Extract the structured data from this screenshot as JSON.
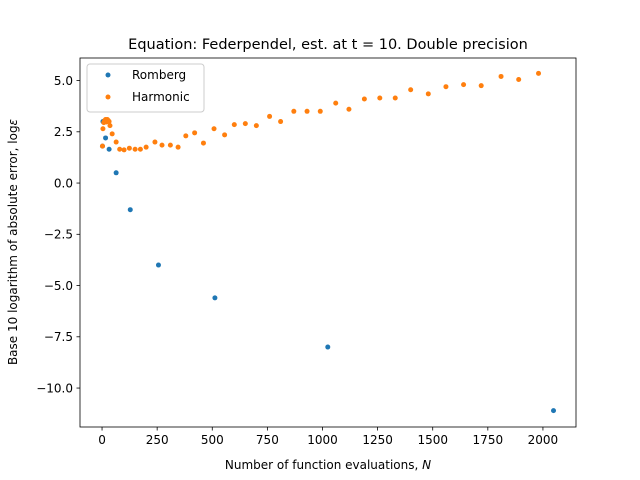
{
  "chart_data": {
    "type": "scatter",
    "title": "Equation: Federpendel, est. at t = 10. Double precision",
    "xlabel": "Number of function evaluations, ",
    "xlabel_var": "N",
    "ylabel": "Base 10 logarithm of absolute error, log",
    "ylabel_var": "ε",
    "xlim": [
      -100,
      2150
    ],
    "ylim": [
      -11.9,
      6.1
    ],
    "xticks": [
      0,
      250,
      500,
      750,
      1000,
      1250,
      1500,
      1750,
      2000
    ],
    "yticks": [
      -10.0,
      -7.5,
      -5.0,
      -2.5,
      0.0,
      2.5,
      5.0
    ],
    "xtick_labels": [
      "0",
      "250",
      "500",
      "750",
      "1000",
      "1250",
      "1500",
      "1750",
      "2000"
    ],
    "ytick_labels": [
      "−10.0",
      "−7.5",
      "−5.0",
      "−2.5",
      "0.0",
      "2.5",
      "5.0"
    ],
    "grid": false,
    "legend_position": "top-left",
    "series": [
      {
        "name": "Romberg",
        "color": "#1f77b4",
        "points": [
          [
            2,
            1.8
          ],
          [
            4,
            3.0
          ],
          [
            8,
            3.0
          ],
          [
            16,
            2.2
          ],
          [
            32,
            1.65
          ],
          [
            64,
            0.5
          ],
          [
            128,
            -1.3
          ],
          [
            256,
            -4.0
          ],
          [
            512,
            -5.6
          ],
          [
            1024,
            -8.0
          ],
          [
            2048,
            -11.1
          ]
        ]
      },
      {
        "name": "Harmonic",
        "color": "#ff7f0e",
        "points": [
          [
            2,
            1.8
          ],
          [
            4,
            2.65
          ],
          [
            8,
            2.95
          ],
          [
            12,
            3.05
          ],
          [
            16,
            3.1
          ],
          [
            20,
            2.98
          ],
          [
            24,
            3.1
          ],
          [
            28,
            3.05
          ],
          [
            32,
            3.0
          ],
          [
            36,
            2.8
          ],
          [
            46,
            2.4
          ],
          [
            64,
            2.0
          ],
          [
            80,
            1.65
          ],
          [
            100,
            1.62
          ],
          [
            124,
            1.7
          ],
          [
            150,
            1.65
          ],
          [
            174,
            1.65
          ],
          [
            200,
            1.75
          ],
          [
            240,
            2.0
          ],
          [
            272,
            1.85
          ],
          [
            310,
            1.85
          ],
          [
            345,
            1.75
          ],
          [
            380,
            2.3
          ],
          [
            420,
            2.45
          ],
          [
            460,
            1.95
          ],
          [
            508,
            2.65
          ],
          [
            556,
            2.35
          ],
          [
            600,
            2.85
          ],
          [
            650,
            2.9
          ],
          [
            700,
            2.8
          ],
          [
            760,
            3.25
          ],
          [
            810,
            3.0
          ],
          [
            870,
            3.5
          ],
          [
            930,
            3.5
          ],
          [
            990,
            3.5
          ],
          [
            1060,
            3.9
          ],
          [
            1120,
            3.6
          ],
          [
            1190,
            4.1
          ],
          [
            1260,
            4.15
          ],
          [
            1330,
            4.15
          ],
          [
            1400,
            4.55
          ],
          [
            1480,
            4.35
          ],
          [
            1560,
            4.7
          ],
          [
            1640,
            4.8
          ],
          [
            1720,
            4.75
          ],
          [
            1810,
            5.2
          ],
          [
            1890,
            5.05
          ],
          [
            1980,
            5.35
          ]
        ]
      }
    ]
  }
}
